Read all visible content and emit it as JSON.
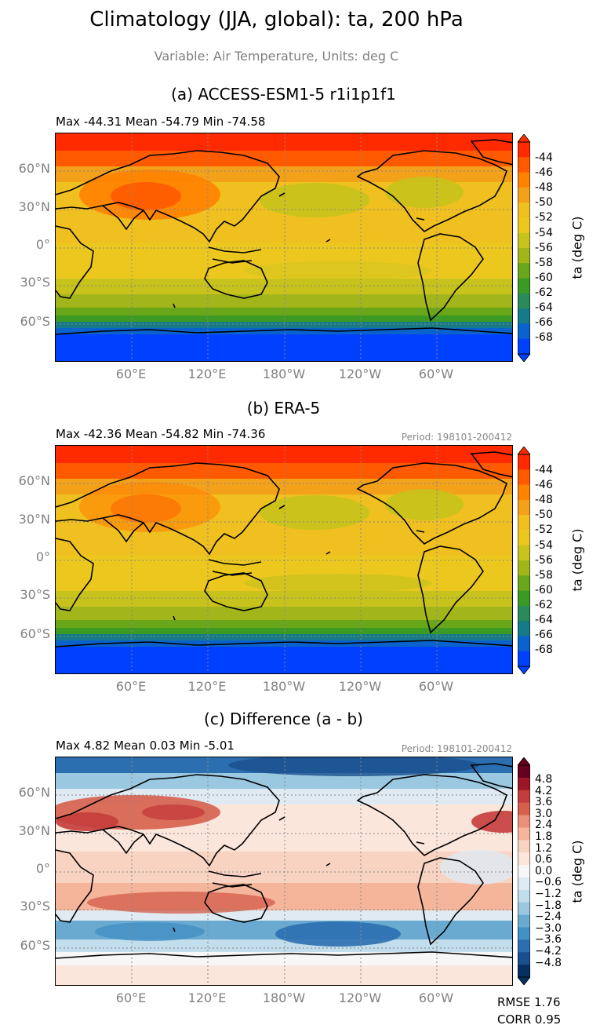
{
  "figure": {
    "title": "Climatology (JJA, global): ta, 200 hPa",
    "subtitle": "Variable: Air Temperature, Units: deg C"
  },
  "axes": {
    "lat_labels": [
      "60°N",
      "30°N",
      "0°",
      "30°S",
      "60°S"
    ],
    "lon_labels": [
      "60°E",
      "120°E",
      "180°W",
      "120°W",
      "60°W"
    ]
  },
  "panels": [
    {
      "title": "(a) ACCESS-ESM1-5 r1i1p1f1",
      "stats": "Max -44.31 Mean -54.79 Min -74.58",
      "period": "",
      "colorbar_label": "ta (deg C)",
      "colorbar_ticks": [
        "-44",
        "-46",
        "-48",
        "-50",
        "-52",
        "-54",
        "-56",
        "-58",
        "-60",
        "-62",
        "-64",
        "-66",
        "-68"
      ]
    },
    {
      "title": "(b) ERA-5",
      "stats": "Max -42.36 Mean -54.82 Min -74.36",
      "period": "Period: 198101-200412",
      "colorbar_label": "ta (deg C)",
      "colorbar_ticks": [
        "-44",
        "-46",
        "-48",
        "-50",
        "-52",
        "-54",
        "-56",
        "-58",
        "-60",
        "-62",
        "-64",
        "-66",
        "-68"
      ]
    },
    {
      "title": "(c) Difference (a - b)",
      "stats": "Max 4.82 Mean 0.03 Min -5.01",
      "period": "Period: 198101-200412",
      "colorbar_label": "ta (deg C)",
      "colorbar_ticks": [
        "4.8",
        "4.2",
        "3.6",
        "3.0",
        "2.4",
        "1.8",
        "1.2",
        "0.6",
        "0.0",
        "−0.6",
        "−1.2",
        "−1.8",
        "−2.4",
        "−3.0",
        "−3.6",
        "−4.2",
        "−4.8"
      ]
    }
  ],
  "metrics": {
    "rmse": "RMSE 1.76",
    "corr": "CORR 0.95"
  },
  "colors": {
    "temp_scale": [
      "#ff2a00",
      "#ff5a00",
      "#ff8200",
      "#f4a11a",
      "#f0c020",
      "#ecc81f",
      "#c8c21c",
      "#a2b61c",
      "#6aa61a",
      "#3a9a24",
      "#2a8a5a",
      "#167a88",
      "#0a62cc",
      "#0040ff"
    ],
    "diff_scale": [
      "#67001f",
      "#9b1728",
      "#c43c3c",
      "#d6604d",
      "#e8907a",
      "#f4b59b",
      "#f9d3c2",
      "#fbe6dc",
      "#f7f7f7",
      "#dfeaf2",
      "#c2ddec",
      "#9ac8e0",
      "#6aaad1",
      "#4390c3",
      "#2c6fb0",
      "#1a4f8f",
      "#053061"
    ],
    "coast": "#000000"
  }
}
